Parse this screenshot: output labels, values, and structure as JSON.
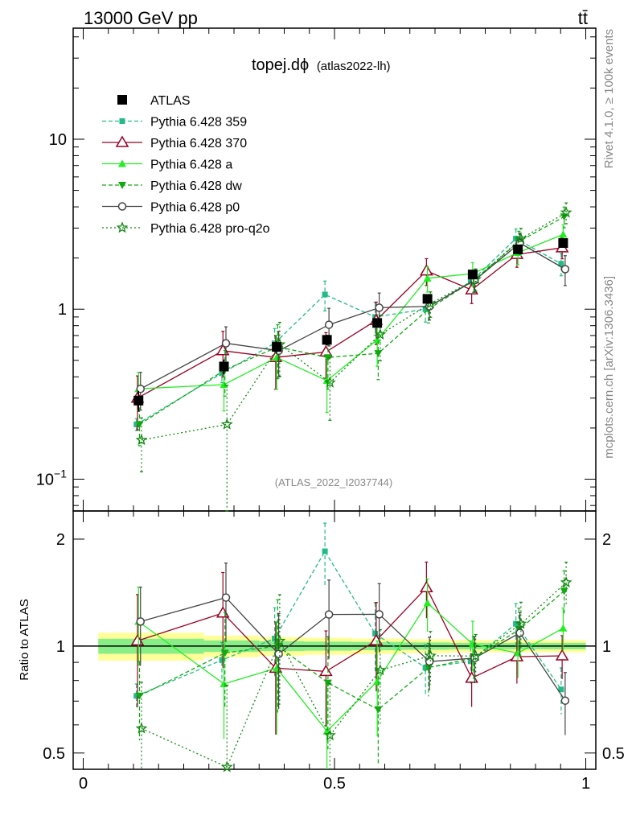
{
  "header": {
    "energy_label": "13000 GeV pp",
    "process_label": "tt̄"
  },
  "side_labels": {
    "rivet": "Rivet 4.1.0, ≥ 100k events",
    "mcplots": "mcplots.cern.ch [arXiv:1306.3436]"
  },
  "plot": {
    "title_main": "topej.dϕ",
    "title_sub": "(atlas2022-lh)",
    "analysis_id": "(ATLAS_2022_I2037744)",
    "ratio_ylabel": "Ratio to ATLAS"
  },
  "colors": {
    "data": "#000000",
    "p359": "#22bb88",
    "p370": "#990022",
    "pa": "#22ee22",
    "pdw": "#11aa11",
    "pp0": "#444444",
    "pq2o": "#118811",
    "band_yellow": "#ffff99",
    "band_green": "#88ee88"
  },
  "chart_data": {
    "type": "line",
    "title": "topej.dϕ (atlas2022-lh)",
    "xlabel": "",
    "ylabel": "",
    "yscale": "log",
    "xlim": [
      -0.02,
      1.02
    ],
    "ylim": [
      0.065,
      45
    ],
    "ratio_ylim": [
      0.45,
      2.4
    ],
    "x_ticks": [
      "0",
      "0.5",
      "1"
    ],
    "y_ticks": [
      "10^-1",
      "1",
      "10"
    ],
    "ratio_ticks": [
      "0.5",
      "1",
      "2"
    ],
    "x": [
      0.11,
      0.28,
      0.385,
      0.485,
      0.585,
      0.685,
      0.775,
      0.865,
      0.955
    ],
    "data": {
      "name": "ATLAS",
      "values": [
        0.29,
        0.46,
        0.6,
        0.66,
        0.83,
        1.15,
        1.6,
        2.25,
        2.45
      ],
      "err": [
        0.14,
        0.1,
        0.08,
        0.07,
        0.06,
        0.05,
        0.04,
        0.04,
        0.04
      ]
    },
    "series": [
      {
        "name": "Pythia 6.428 359",
        "values": [
          0.21,
          0.42,
          0.63,
          1.22,
          0.9,
          1.0,
          1.45,
          2.6,
          1.85
        ],
        "err": [
          0.08,
          0.12,
          0.22,
          0.2,
          0.22,
          0.16,
          0.14,
          0.14,
          0.15
        ]
      },
      {
        "name": "Pythia 6.428 370",
        "values": [
          0.3,
          0.57,
          0.52,
          0.56,
          0.86,
          1.68,
          1.3,
          2.1,
          2.3
        ],
        "err": [
          0.35,
          0.3,
          0.35,
          0.3,
          0.28,
          0.18,
          0.17,
          0.16,
          0.14
        ]
      },
      {
        "name": "Pythia 6.428 a",
        "values": [
          0.34,
          0.36,
          0.52,
          0.38,
          0.66,
          1.52,
          1.62,
          2.15,
          2.75
        ],
        "err": [
          0.25,
          0.3,
          0.35,
          0.35,
          0.3,
          0.17,
          0.16,
          0.15,
          0.14
        ]
      },
      {
        "name": "Pythia 6.428 dw",
        "values": [
          0.21,
          0.44,
          0.6,
          0.52,
          0.55,
          1.0,
          1.48,
          2.5,
          3.5
        ],
        "err": [
          0.25,
          0.3,
          0.35,
          0.35,
          0.3,
          0.17,
          0.15,
          0.15,
          0.14
        ]
      },
      {
        "name": "Pythia 6.428 p0",
        "values": [
          0.34,
          0.63,
          0.57,
          0.81,
          1.02,
          1.04,
          1.48,
          2.45,
          1.72
        ],
        "err": [
          0.25,
          0.25,
          0.3,
          0.25,
          0.22,
          0.17,
          0.15,
          0.14,
          0.2
        ]
      },
      {
        "name": "Pythia 6.428 pro-q2o",
        "values": [
          0.17,
          0.21,
          0.62,
          0.37,
          0.71,
          1.08,
          1.5,
          2.6,
          3.7
        ],
        "err": [
          0.35,
          0.7,
          0.35,
          0.4,
          0.3,
          0.17,
          0.15,
          0.15,
          0.14
        ]
      }
    ]
  }
}
